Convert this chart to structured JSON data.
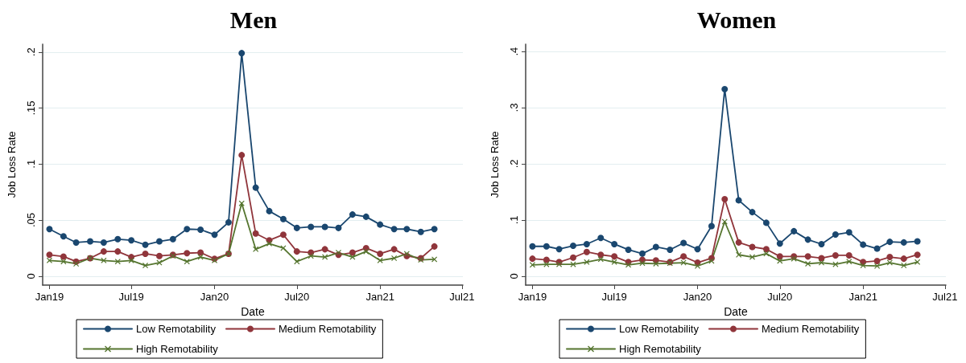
{
  "chart_data": [
    {
      "type": "line",
      "title": "Men",
      "xlabel": "Date",
      "ylabel": "Job Loss Rate",
      "x": [
        "2019-01",
        "2019-02",
        "2019-03",
        "2019-04",
        "2019-05",
        "2019-06",
        "2019-07",
        "2019-08",
        "2019-09",
        "2019-10",
        "2019-11",
        "2019-12",
        "2020-01",
        "2020-02",
        "2020-03",
        "2020-04",
        "2020-05",
        "2020-06",
        "2020-07",
        "2020-08",
        "2020-09",
        "2020-10",
        "2020-11",
        "2020-12",
        "2021-01",
        "2021-02",
        "2021-03",
        "2021-04",
        "2021-05"
      ],
      "series": [
        {
          "name": "Low Remotability",
          "color": "#1a476f",
          "marker": "circle",
          "values": [
            0.042,
            0.0355,
            0.03,
            0.031,
            0.03,
            0.033,
            0.032,
            0.028,
            0.031,
            0.033,
            0.042,
            0.0415,
            0.037,
            0.048,
            0.199,
            0.079,
            0.058,
            0.051,
            0.043,
            0.044,
            0.044,
            0.043,
            0.055,
            0.053,
            0.046,
            0.042,
            0.042,
            0.0395,
            0.042
          ]
        },
        {
          "name": "Medium Remotability",
          "color": "#90353b",
          "marker": "circle",
          "values": [
            0.019,
            0.0175,
            0.013,
            0.016,
            0.022,
            0.022,
            0.017,
            0.02,
            0.018,
            0.019,
            0.0205,
            0.021,
            0.0155,
            0.02,
            0.108,
            0.038,
            0.032,
            0.037,
            0.022,
            0.021,
            0.024,
            0.019,
            0.021,
            0.025,
            0.02,
            0.024,
            0.018,
            0.016,
            0.0265
          ]
        },
        {
          "name": "High Remotability",
          "color": "#55752f",
          "marker": "cross",
          "values": [
            0.014,
            0.013,
            0.011,
            0.016,
            0.014,
            0.013,
            0.014,
            0.0095,
            0.012,
            0.018,
            0.013,
            0.017,
            0.014,
            0.02,
            0.065,
            0.024,
            0.029,
            0.025,
            0.013,
            0.018,
            0.017,
            0.021,
            0.017,
            0.022,
            0.014,
            0.016,
            0.02,
            0.0145,
            0.015
          ]
        }
      ],
      "xlim": [
        "2018-12-17",
        "2021-07-03"
      ],
      "xticks": [
        {
          "value": "2019-01",
          "label": "Jan19"
        },
        {
          "value": "2019-07",
          "label": "Jul19"
        },
        {
          "value": "2020-01",
          "label": "Jan20"
        },
        {
          "value": "2020-07",
          "label": "Jul20"
        },
        {
          "value": "2021-01",
          "label": "Jan21"
        },
        {
          "value": "2021-07",
          "label": "Jul21"
        }
      ],
      "ylim": [
        -0.008,
        0.207
      ],
      "yticks": [
        0,
        {
          "value": 0.05,
          "label": ".05"
        },
        {
          "value": 0.1,
          "label": ".1"
        },
        {
          "value": 0.15,
          "label": ".15"
        },
        {
          "value": 0.2,
          "label": ".2"
        }
      ],
      "grid": "y",
      "legend": "bottom"
    },
    {
      "type": "line",
      "title": "Women",
      "xlabel": "Date",
      "ylabel": "Job Loss Rate",
      "x": [
        "2019-01",
        "2019-02",
        "2019-03",
        "2019-04",
        "2019-05",
        "2019-06",
        "2019-07",
        "2019-08",
        "2019-09",
        "2019-10",
        "2019-11",
        "2019-12",
        "2020-01",
        "2020-02",
        "2020-03",
        "2020-04",
        "2020-05",
        "2020-06",
        "2020-07",
        "2020-08",
        "2020-09",
        "2020-10",
        "2020-11",
        "2020-12",
        "2021-01",
        "2021-02",
        "2021-03",
        "2021-04",
        "2021-05"
      ],
      "series": [
        {
          "name": "Low Remotability",
          "color": "#1a476f",
          "marker": "circle",
          "values": [
            0.053,
            0.053,
            0.048,
            0.054,
            0.057,
            0.068,
            0.057,
            0.047,
            0.04,
            0.052,
            0.047,
            0.059,
            0.048,
            0.089,
            0.333,
            0.135,
            0.114,
            0.095,
            0.058,
            0.08,
            0.065,
            0.057,
            0.074,
            0.078,
            0.056,
            0.049,
            0.061,
            0.06,
            0.062
          ]
        },
        {
          "name": "Medium Remotability",
          "color": "#90353b",
          "marker": "circle",
          "values": [
            0.031,
            0.029,
            0.025,
            0.033,
            0.043,
            0.038,
            0.035,
            0.025,
            0.029,
            0.028,
            0.025,
            0.035,
            0.024,
            0.032,
            0.137,
            0.06,
            0.052,
            0.048,
            0.035,
            0.035,
            0.035,
            0.032,
            0.037,
            0.037,
            0.025,
            0.027,
            0.034,
            0.031,
            0.038
          ]
        },
        {
          "name": "High Remotability",
          "color": "#55752f",
          "marker": "cross",
          "values": [
            0.02,
            0.021,
            0.021,
            0.021,
            0.025,
            0.03,
            0.025,
            0.02,
            0.023,
            0.022,
            0.023,
            0.024,
            0.018,
            0.027,
            0.097,
            0.038,
            0.034,
            0.04,
            0.027,
            0.031,
            0.022,
            0.024,
            0.021,
            0.026,
            0.019,
            0.018,
            0.024,
            0.019,
            0.025
          ]
        }
      ],
      "xlim": [
        "2018-12-17",
        "2021-07-03"
      ],
      "xticks": [
        {
          "value": "2019-01",
          "label": "Jan19"
        },
        {
          "value": "2019-07",
          "label": "Jul19"
        },
        {
          "value": "2020-01",
          "label": "Jan20"
        },
        {
          "value": "2020-07",
          "label": "Jul20"
        },
        {
          "value": "2021-01",
          "label": "Jan21"
        },
        {
          "value": "2021-07",
          "label": "Jul21"
        }
      ],
      "ylim": [
        -0.016,
        0.413
      ],
      "yticks": [
        0,
        {
          "value": 0.1,
          "label": ".1"
        },
        {
          "value": 0.2,
          "label": ".2"
        },
        {
          "value": 0.3,
          "label": ".3"
        },
        {
          "value": 0.4,
          "label": ".4"
        }
      ],
      "grid": "y",
      "legend": "bottom"
    }
  ]
}
